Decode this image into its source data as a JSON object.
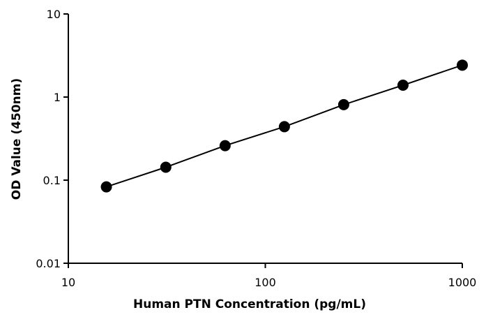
{
  "chart_data": {
    "type": "line",
    "title": "",
    "xlabel": "Human PTN Concentration (pg/mL)",
    "ylabel": "OD Value (450nm)",
    "x_scale": "log",
    "y_scale": "log",
    "xlim": [
      10,
      1000
    ],
    "ylim": [
      0.01,
      10
    ],
    "x_ticks": [
      10,
      100,
      1000
    ],
    "x_tick_labels": [
      "10",
      "100",
      "1000"
    ],
    "y_ticks": [
      0.01,
      0.1,
      1,
      10
    ],
    "y_tick_labels": [
      "0.01",
      "0.1",
      "1",
      "10"
    ],
    "grid": false,
    "legend": "none",
    "colors": {
      "line": "#000000",
      "marker": "#000000"
    },
    "series": [
      {
        "x": [
          15.6,
          31.25,
          62.5,
          125,
          250,
          500,
          1000
        ],
        "y": [
          0.083,
          0.143,
          0.26,
          0.44,
          0.81,
          1.39,
          2.42
        ]
      }
    ]
  }
}
